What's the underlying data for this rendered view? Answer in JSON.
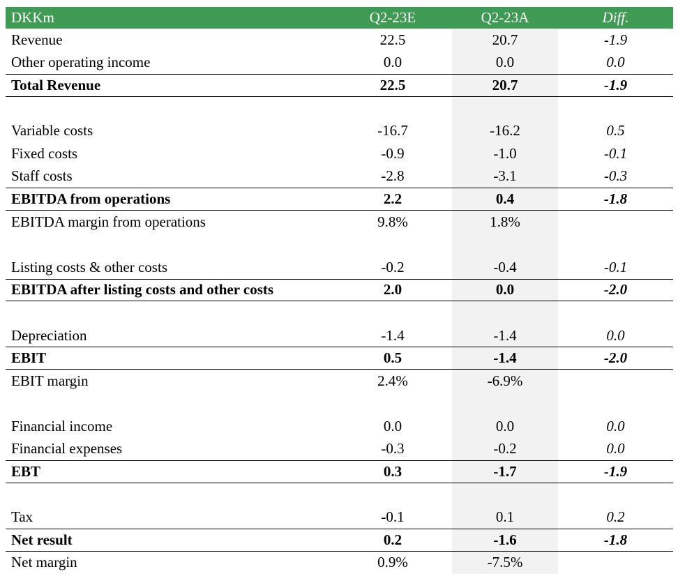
{
  "header": {
    "label": "DKKm",
    "col_e": "Q2-23E",
    "col_a": "Q2-23A",
    "col_d": "Diff."
  },
  "rows": [
    {
      "label": "Revenue",
      "e": "22.5",
      "a": "20.7",
      "d": "-1.9"
    },
    {
      "label": "Other operating income",
      "e": "0.0",
      "a": "0.0",
      "d": "0.0"
    },
    {
      "label": "Total Revenue",
      "e": "22.5",
      "a": "20.7",
      "d": "-1.9"
    },
    {
      "label": "Variable costs",
      "e": "-16.7",
      "a": "-16.2",
      "d": "0.5"
    },
    {
      "label": "Fixed costs",
      "e": "-0.9",
      "a": "-1.0",
      "d": "-0.1"
    },
    {
      "label": "Staff costs",
      "e": "-2.8",
      "a": "-3.1",
      "d": "-0.3"
    },
    {
      "label": "EBITDA from operations",
      "e": "2.2",
      "a": "0.4",
      "d": "-1.8"
    },
    {
      "label": "EBITDA margin from operations",
      "e": "9.8%",
      "a": "1.8%",
      "d": ""
    },
    {
      "label": "Listing costs & other costs",
      "e": "-0.2",
      "a": "-0.4",
      "d": "-0.1"
    },
    {
      "label": "EBITDA after listing costs and other costs",
      "e": "2.0",
      "a": "0.0",
      "d": "-2.0"
    },
    {
      "label": "Depreciation",
      "e": "-1.4",
      "a": "-1.4",
      "d": "0.0"
    },
    {
      "label": "EBIT",
      "e": "0.5",
      "a": "-1.4",
      "d": "-2.0"
    },
    {
      "label": "EBIT margin",
      "e": "2.4%",
      "a": "-6.9%",
      "d": ""
    },
    {
      "label": "Financial income",
      "e": "0.0",
      "a": "0.0",
      "d": "0.0"
    },
    {
      "label": "Financial expenses",
      "e": "-0.3",
      "a": "-0.2",
      "d": "0.0"
    },
    {
      "label": "EBT",
      "e": "0.3",
      "a": "-1.7",
      "d": "-1.9"
    },
    {
      "label": "Tax",
      "e": "-0.1",
      "a": "0.1",
      "d": "0.2"
    },
    {
      "label": "Net result",
      "e": "0.2",
      "a": "-1.6",
      "d": "-1.8"
    },
    {
      "label": "Net margin",
      "e": "0.9%",
      "a": "-7.5%",
      "d": ""
    }
  ]
}
